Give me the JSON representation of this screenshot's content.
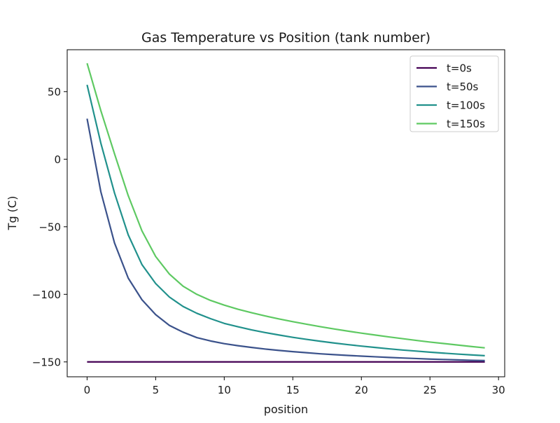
{
  "chart_data": {
    "type": "line",
    "title": "Gas Temperature vs Position (tank number)",
    "xlabel": "position",
    "ylabel": "Tg (C)",
    "xlim": [
      -1.45,
      30.45
    ],
    "ylim": [
      -161,
      81
    ],
    "xticks": [
      0,
      5,
      10,
      15,
      20,
      25,
      30
    ],
    "xtick_labels": [
      "0",
      "5",
      "10",
      "15",
      "20",
      "25",
      "30"
    ],
    "yticks": [
      -150,
      -100,
      -50,
      0,
      50
    ],
    "ytick_labels": [
      "−150",
      "−100",
      "−50",
      "0",
      "50"
    ],
    "grid": false,
    "legend_position": "upper-right",
    "x": [
      0,
      1,
      2,
      3,
      4,
      5,
      6,
      7,
      8,
      9,
      10,
      11,
      12,
      13,
      14,
      15,
      16,
      17,
      18,
      19,
      20,
      21,
      22,
      23,
      24,
      25,
      26,
      27,
      28,
      29
    ],
    "series": [
      {
        "name": "t=0s",
        "color": "#440154",
        "values": [
          -150,
          -150,
          -150,
          -150,
          -150,
          -150,
          -150,
          -150,
          -150,
          -150,
          -150,
          -150,
          -150,
          -150,
          -150,
          -150,
          -150,
          -150,
          -150,
          -150,
          -150,
          -150,
          -150,
          -150,
          -150,
          -150,
          -150,
          -150,
          -150,
          -150
        ]
      },
      {
        "name": "t=50s",
        "color": "#3b528b",
        "values": [
          30,
          -24,
          -62,
          -88,
          -104,
          -115,
          -123,
          -128,
          -132,
          -134.5,
          -136.5,
          -138,
          -139.3,
          -140.5,
          -141.5,
          -142.4,
          -143.2,
          -144,
          -144.6,
          -145.2,
          -145.7,
          -146.2,
          -146.7,
          -147.1,
          -147.5,
          -147.9,
          -148.2,
          -148.5,
          -148.8,
          -149
        ]
      },
      {
        "name": "t=100s",
        "color": "#21918c",
        "values": [
          55,
          12,
          -25,
          -56,
          -78,
          -92,
          -102,
          -109,
          -114,
          -118,
          -121.5,
          -124,
          -126.3,
          -128.3,
          -130.1,
          -131.8,
          -133.3,
          -134.7,
          -136,
          -137.2,
          -138.3,
          -139.3,
          -140.3,
          -141.2,
          -142,
          -142.8,
          -143.5,
          -144.2,
          -144.8,
          -145.4
        ]
      },
      {
        "name": "t=150s",
        "color": "#5ec962",
        "values": [
          71,
          36,
          4,
          -27,
          -53,
          -72,
          -85,
          -94,
          -100,
          -104.5,
          -108,
          -111,
          -113.6,
          -116,
          -118.2,
          -120.2,
          -122.1,
          -123.9,
          -125.6,
          -127.2,
          -128.7,
          -130.1,
          -131.5,
          -132.8,
          -134.1,
          -135.3,
          -136.4,
          -137.5,
          -138.6,
          -139.6
        ]
      }
    ]
  }
}
